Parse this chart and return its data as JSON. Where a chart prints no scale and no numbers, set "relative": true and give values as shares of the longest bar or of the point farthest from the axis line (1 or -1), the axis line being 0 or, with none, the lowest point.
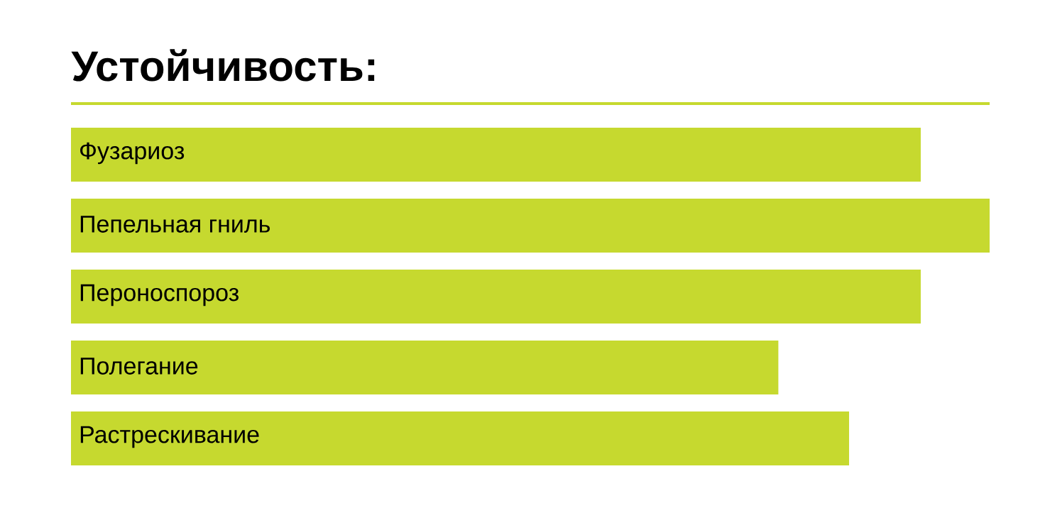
{
  "chart_data": {
    "type": "bar",
    "orientation": "horizontal",
    "relative": true,
    "title": "Устойчивость:",
    "categories": [
      "Фузариоз",
      "Пепельная гниль",
      "Пероноспороз",
      "Полегание",
      "Растрескивание"
    ],
    "values": [
      0.925,
      1,
      0.925,
      0.77,
      0.847
    ],
    "color": "#c6d92f"
  }
}
